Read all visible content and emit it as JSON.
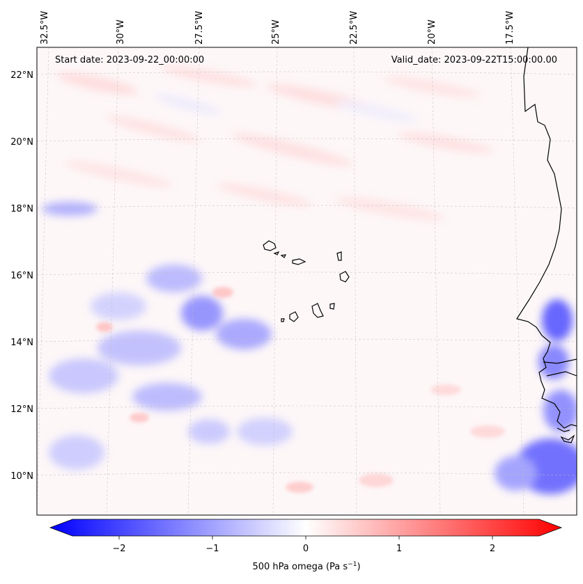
{
  "map": {
    "start_date": "Start date: 2023-09-22_00:00:00",
    "valid_date": "Valid_date: 2023-09-22T15:00:00.00",
    "lon_labels": [
      "32.5°W",
      "30°W",
      "27.5°W",
      "25°W",
      "22.5°W",
      "20°W",
      "17.5°W"
    ],
    "lat_labels": [
      "22°N",
      "20°N",
      "18°N",
      "16°N",
      "14°N",
      "12°N",
      "10°N"
    ],
    "colors": {
      "negative": "#0000ff",
      "neutral": "#ffffff",
      "positive": "#ff0000",
      "coastline": "#000000",
      "gridline": "#bbbbbb"
    }
  },
  "colorbar": {
    "label": "500 hPa omega (Pa s",
    "label_sup": "−1",
    "label_tail": ")",
    "tick_labels": [
      "−2",
      "−1",
      "0",
      "1",
      "2"
    ],
    "tick_values": [
      -2,
      -1,
      0,
      1,
      2
    ],
    "range": [
      -2.5,
      2.5
    ],
    "extend": "both"
  }
}
